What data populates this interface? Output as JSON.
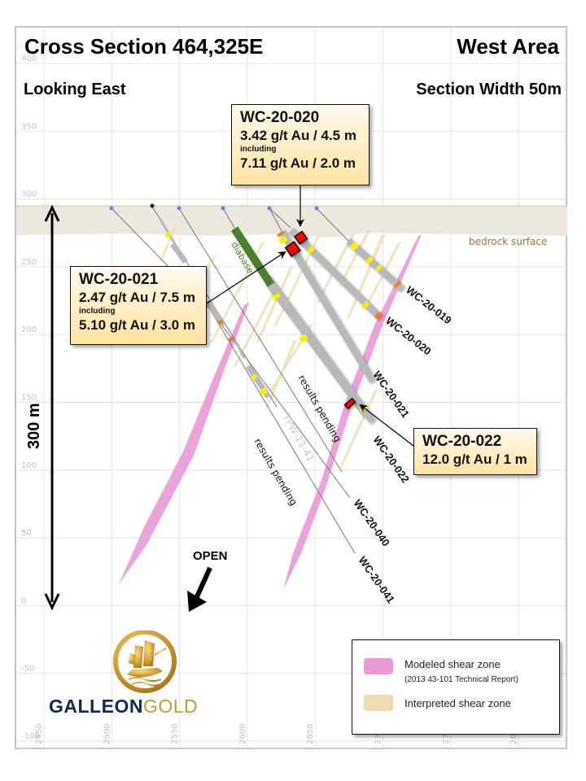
{
  "header": {
    "title": "Cross Section 464,325E",
    "area": "West Area",
    "view": "Looking East",
    "section_width": "Section Width 50m"
  },
  "axes": {
    "y_ticks": [
      "400",
      "350",
      "300",
      "250",
      "200",
      "150",
      "100",
      "50",
      "0",
      "-50",
      "-100"
    ],
    "x_ticks": [
      "2450",
      "2500",
      "2550",
      "2600",
      "2650",
      "27",
      "27",
      "28"
    ],
    "scale_bar_label": "300 m"
  },
  "labels": {
    "bedrock": "bedrock surface",
    "diabase": "diabase",
    "open": "OPEN",
    "tpw": "TPW-11-41",
    "pending_040": "results pending",
    "pending_041": "results pending"
  },
  "holes": [
    {
      "id": "WC-20-019"
    },
    {
      "id": "WC-20-020"
    },
    {
      "id": "WC-20-021"
    },
    {
      "id": "WC-20-022"
    },
    {
      "id": "WC-20-040"
    },
    {
      "id": "WC-20-041"
    }
  ],
  "callouts": {
    "wc020": {
      "hole": "WC-20-020",
      "grade1": "3.42 g/t Au / 4.5 m",
      "including": "including",
      "grade2": "7.11 g/t Au / 2.0 m"
    },
    "wc021": {
      "hole": "WC-20-021",
      "grade1": "2.47 g/t Au / 7.5 m",
      "including": "including",
      "grade2": "5.10 g/t Au / 3.0 m"
    },
    "wc022": {
      "hole": "WC-20-022",
      "grade1": "12.0 g/t Au / 1 m"
    }
  },
  "legend": {
    "modeled": "Modeled shear zone",
    "modeled_sub": "(2013 43-101 Technical Report)",
    "interpreted": "Interpreted  shear zone"
  },
  "logo": {
    "word1": "GALLEON",
    "word2": "GOLD"
  },
  "colors": {
    "modeled_shear": "#e99ad6",
    "interpreted_shear": "#eadcb0",
    "drill_trace": "#b9b9b9",
    "diabase": "#4f7f2e",
    "high_grade": "#ff0000",
    "assay_yellow": "#ffee00",
    "assay_orange": "#f07a2a",
    "bedrock_text": "#a0703a",
    "logo_navy": "#102a55",
    "logo_gold": "#c9963a"
  }
}
